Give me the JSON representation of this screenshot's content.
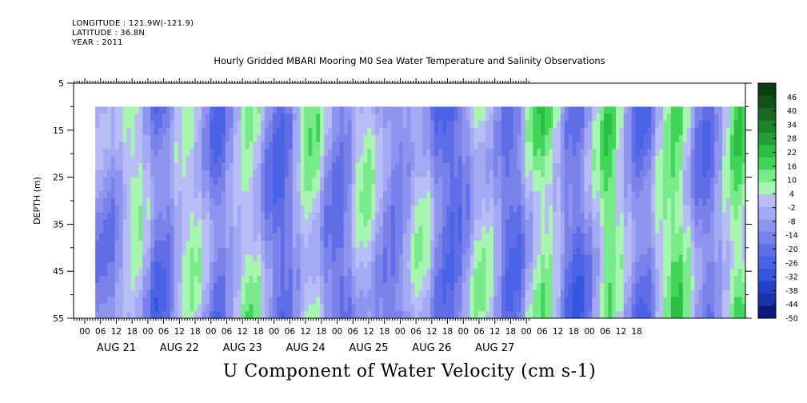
{
  "header": {
    "longitude": "LONGITUDE : 121.9W(-121.9)",
    "latitude": "LATITUDE : 36.8N",
    "year": "YEAR : 2011"
  },
  "chart_data": {
    "type": "heatmap",
    "title": "Hourly Gridded MBARI Mooring M0 Sea Water Temperature and Salinity Observations",
    "xlabel": "U Component of Water Velocity (cm s-1)",
    "ylabel": "DEPTH (m)",
    "ylim": [
      55,
      5
    ],
    "y_tick_labels": [
      "5",
      "15",
      "25",
      "35",
      "45",
      "55"
    ],
    "y_tick_values": [
      5,
      15,
      25,
      35,
      45,
      55
    ],
    "x_hour_labels": [
      "00",
      "06",
      "12",
      "18",
      "00",
      "06",
      "12",
      "18",
      "00",
      "06",
      "12",
      "18",
      "00",
      "06",
      "12",
      "18",
      "00",
      "06",
      "12",
      "18",
      "00",
      "06",
      "12",
      "18",
      "00",
      "06",
      "12",
      "18",
      "00",
      "06",
      "12",
      "18",
      "00",
      "06",
      "12",
      "18"
    ],
    "x_day_labels": [
      "AUG 21",
      "AUG 22",
      "AUG 23",
      "AUG 24",
      "AUG 25",
      "AUG 26",
      "AUG 27"
    ],
    "data_depth_range": [
      10,
      55
    ],
    "data_start_hour_after_first_tick": 4,
    "colorbar": {
      "labels": [
        "46",
        "40",
        "34",
        "28",
        "22",
        "16",
        "10",
        "4",
        "-2",
        "-8",
        "-14",
        "-20",
        "-26",
        "-32",
        "-38",
        "-44",
        "-50"
      ],
      "range": [
        -50,
        52
      ],
      "colors_top_to_bottom": [
        "#0b3d12",
        "#12521a",
        "#176a22",
        "#1d832b",
        "#22a035",
        "#2abf40",
        "#40d558",
        "#78ea8a",
        "#a8f5b2",
        "#b9bdf6",
        "#a3a9f2",
        "#8e95ee",
        "#7a82ea",
        "#5f6ee6",
        "#4a63e6",
        "#3656e0",
        "#2142c8",
        "#1a33a8",
        "#0c1a7e"
      ]
    },
    "u_velocity_column_profiles_cm_s": {
      "note_columns": "hourly, Aug 21 04h to Aug 27 23h, top=10m bottom=55m",
      "surface_values": [
        -8,
        -10,
        -12,
        -6,
        2,
        6,
        4,
        -4,
        -14,
        -18,
        -16,
        -10,
        -2,
        4,
        6,
        2,
        -6,
        -14,
        -18,
        -16,
        -8,
        0,
        6,
        8,
        4,
        -4,
        -12,
        -18,
        -20,
        -14,
        -4,
        4,
        8,
        6,
        -2,
        -10,
        -16,
        -18,
        -12,
        -4,
        2,
        4,
        0,
        -6,
        -12,
        -16,
        -14,
        -8,
        -2,
        2,
        0,
        -8,
        -16,
        -20,
        -22,
        -18,
        -10,
        -2,
        4,
        6,
        2,
        -6,
        -14,
        -18,
        -16,
        -8,
        2,
        10,
        14,
        10,
        2,
        -8,
        -16,
        -20,
        -18,
        -10,
        0,
        8,
        14,
        12,
        4,
        -6,
        -14,
        -18,
        -16,
        -8,
        2,
        10,
        16,
        14,
        6,
        -4,
        -12,
        -16,
        -14,
        -6,
        4,
        12,
        16,
        12
      ]
    }
  }
}
